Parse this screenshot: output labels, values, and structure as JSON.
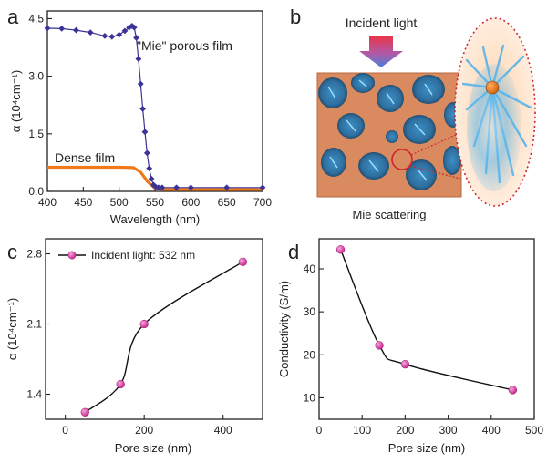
{
  "panels": {
    "a": "a",
    "b": "b",
    "c": "c",
    "d": "d"
  },
  "colors": {
    "mie": "#3b3496",
    "dense": "#f07a1a",
    "label_red": "#c8202e",
    "marker": "#d6279a",
    "line": "#111111",
    "pore_fill": "#d98a5e",
    "blue_glow": "#52b6ee"
  },
  "chart_data": [
    {
      "panel": "a",
      "type": "line",
      "xlabel": "Wavelength (nm)",
      "ylabel": "α (10⁴cm⁻¹)",
      "xlim": [
        400,
        700
      ],
      "ylim": [
        0,
        4.7
      ],
      "xticks": [
        400,
        450,
        500,
        550,
        600,
        650,
        700
      ],
      "yticks": [
        0.0,
        1.5,
        3.0,
        4.5
      ],
      "ytick_labels": [
        "0.0",
        "1.5",
        "3.0",
        "4.5"
      ],
      "series": [
        {
          "name": "\"Mie\" porous film",
          "color": "#3b3496",
          "x": [
            400,
            420,
            440,
            460,
            480,
            490,
            500,
            508,
            514,
            518,
            521,
            524,
            527,
            530,
            533,
            536,
            539,
            542,
            545,
            548,
            551,
            555,
            560,
            580,
            600,
            650,
            700
          ],
          "y": [
            4.25,
            4.24,
            4.2,
            4.14,
            4.05,
            4.03,
            4.08,
            4.18,
            4.27,
            4.31,
            4.27,
            4.0,
            3.45,
            2.8,
            2.15,
            1.55,
            1.0,
            0.6,
            0.33,
            0.17,
            0.12,
            0.1,
            0.1,
            0.1,
            0.1,
            0.1,
            0.1
          ]
        },
        {
          "name": "Dense film",
          "color": "#f07a1a",
          "x": [
            400,
            450,
            500,
            520,
            530,
            540,
            550,
            560,
            600,
            650,
            700
          ],
          "y": [
            0.63,
            0.63,
            0.63,
            0.62,
            0.5,
            0.25,
            0.08,
            0.05,
            0.05,
            0.05,
            0.05
          ]
        }
      ],
      "annotations": [
        "\"Mie\" porous film",
        "Dense film"
      ]
    },
    {
      "panel": "c",
      "type": "scatter",
      "xlabel": "Pore size (nm)",
      "ylabel": "α (10⁴cm⁻¹)",
      "xlim": [
        -50,
        500
      ],
      "ylim": [
        1.15,
        2.95
      ],
      "xticks": [
        0,
        200,
        400
      ],
      "yticks": [
        1.4,
        2.1,
        2.8
      ],
      "ytick_labels": [
        "1.4",
        "2.1",
        "2.8"
      ],
      "legend": "top-left",
      "series": [
        {
          "name": "Incident light: 532 nm",
          "x": [
            50,
            140,
            200,
            450
          ],
          "y": [
            1.22,
            1.5,
            2.1,
            2.72
          ]
        }
      ]
    },
    {
      "panel": "d",
      "type": "scatter",
      "xlabel": "Pore size (nm)",
      "ylabel": "Conductivity (S/m)",
      "xlim": [
        0,
        500
      ],
      "ylim": [
        5,
        47
      ],
      "xticks": [
        0,
        100,
        200,
        300,
        400,
        500
      ],
      "yticks": [
        10,
        20,
        30,
        40
      ],
      "series": [
        {
          "x": [
            50,
            140,
            200,
            450
          ],
          "y": [
            44.5,
            22.2,
            17.8,
            11.8
          ]
        }
      ]
    }
  ],
  "diagram": {
    "incident_light": "Incident light",
    "caption": "Mie scattering"
  }
}
